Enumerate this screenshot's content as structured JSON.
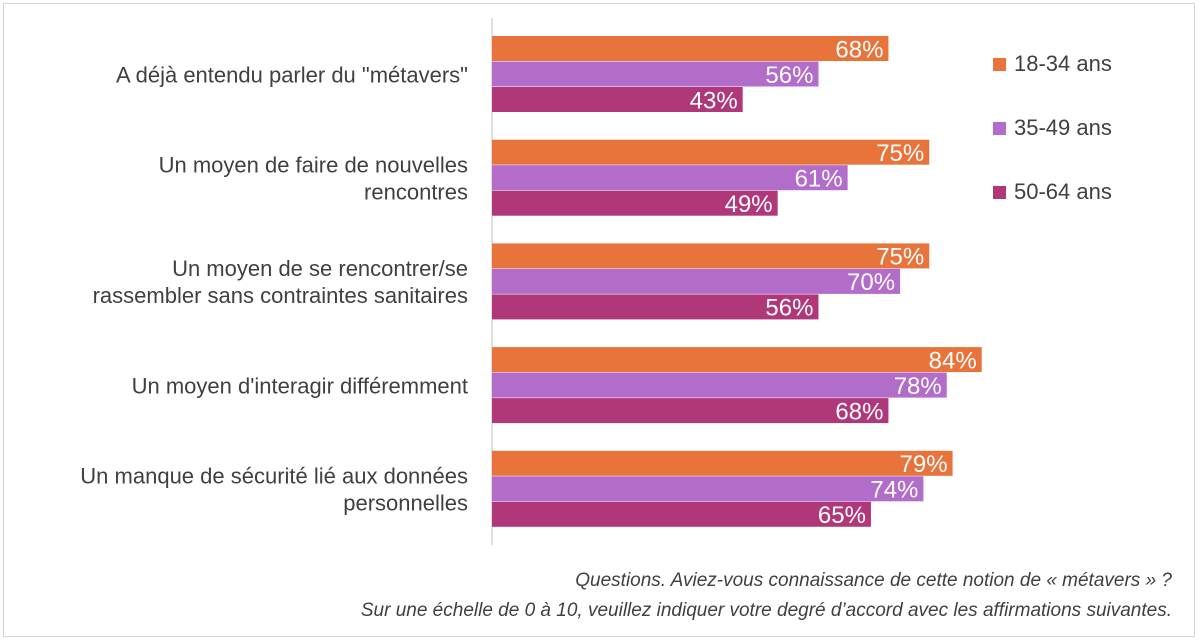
{
  "chart_data": {
    "type": "bar",
    "orientation": "horizontal",
    "categories": [
      [
        "A déjà entendu parler du \"métavers\""
      ],
      [
        "Un moyen de faire de nouvelles",
        "rencontres"
      ],
      [
        "Un moyen de se rencontrer/se",
        "rassembler sans contraintes sanitaires"
      ],
      [
        "Un moyen d'interagir différemment"
      ],
      [
        "Un manque de sécurité lié aux données",
        "personnelles"
      ]
    ],
    "series": [
      {
        "name": "18-34 ans",
        "color": "#e8743b",
        "values": [
          68,
          75,
          75,
          84,
          79
        ],
        "labels": [
          "68%",
          "75%",
          "75%",
          "84%",
          "79%"
        ]
      },
      {
        "name": "35-49 ans",
        "color": "#b26cc9",
        "values": [
          56,
          61,
          70,
          78,
          74
        ],
        "labels": [
          "56%",
          "61%",
          "70%",
          "78%",
          "74%"
        ]
      },
      {
        "name": "50-64 ans",
        "color": "#b0387a",
        "values": [
          43,
          49,
          56,
          68,
          65
        ],
        "labels": [
          "43%",
          "49%",
          "56%",
          "68%",
          "65%"
        ]
      }
    ],
    "xlim": [
      0,
      100
    ],
    "legend_position": "right"
  },
  "notes": [
    "Questions. Aviez-vous connaissance de cette notion de « métavers » ?",
    "Sur une échelle de 0 à 10, veuillez indiquer votre degré d’accord avec les affirmations suivantes."
  ]
}
